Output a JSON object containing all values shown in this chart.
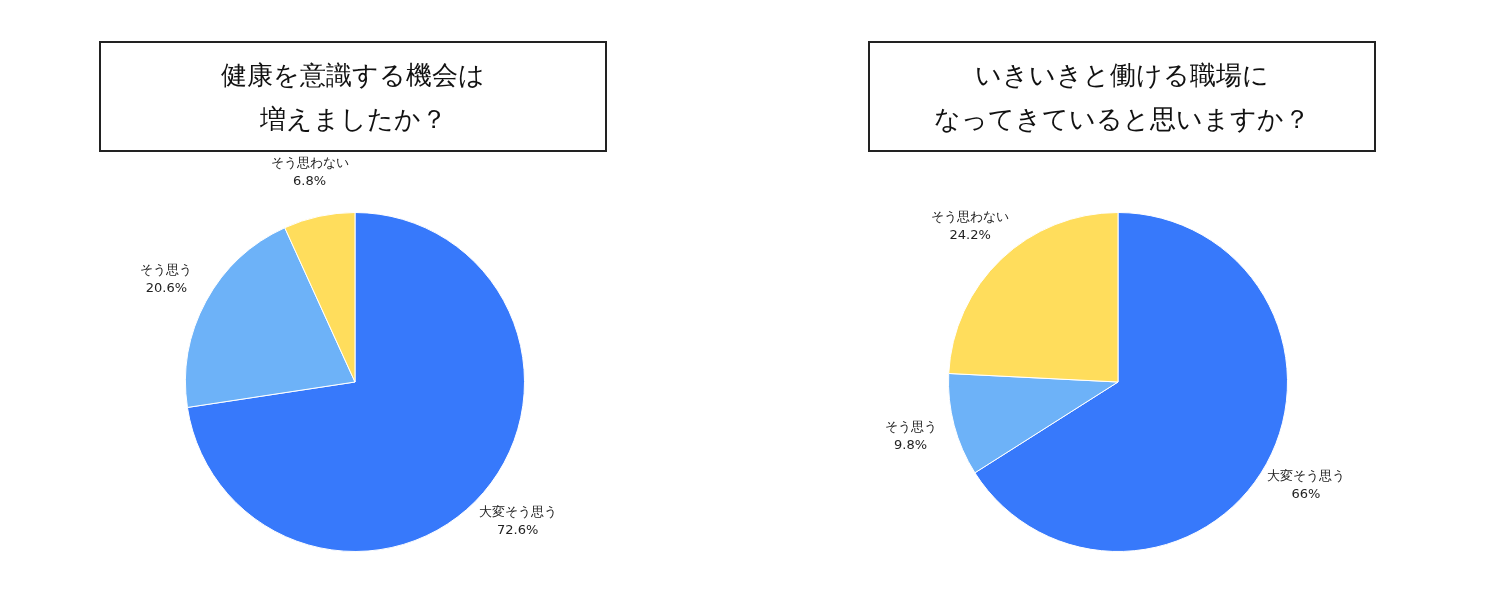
{
  "chart_data": [
    {
      "type": "pie",
      "title": "健康を意識する機会は増えましたか？",
      "categories": [
        "大変そう思う",
        "そう思う",
        "そう思わない"
      ],
      "values": [
        72.6,
        20.6,
        6.8
      ],
      "colors": [
        "#3779fb",
        "#6db2f8",
        "#ffdd5c"
      ],
      "value_labels": [
        "72.6%",
        "20.6%",
        "6.8%"
      ]
    },
    {
      "type": "pie",
      "title": "いきいきと働ける職場になってきていると思いますか？",
      "categories": [
        "大変そう思う",
        "そう思う",
        "そう思わない"
      ],
      "values": [
        66,
        9.8,
        24.2
      ],
      "colors": [
        "#3779fb",
        "#6db2f8",
        "#ffdd5c"
      ],
      "value_labels": [
        "66%",
        "9.8%",
        "24.2%"
      ]
    }
  ]
}
